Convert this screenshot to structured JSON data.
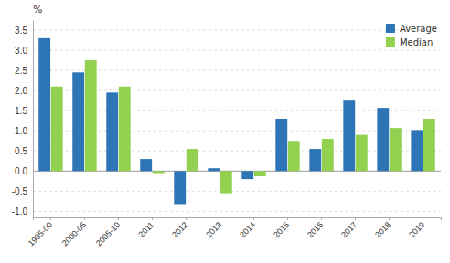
{
  "chart_data": {
    "type": "bar",
    "categories": [
      "1995-00",
      "2000-05",
      "2005-10",
      "2011",
      "2012",
      "2013",
      "2014",
      "2015",
      "2016",
      "2017",
      "2018",
      "2019"
    ],
    "series": [
      {
        "name": "Average",
        "color": "#2E75B6",
        "values": [
          3.3,
          2.45,
          1.95,
          0.3,
          -0.82,
          0.07,
          -0.2,
          1.3,
          0.55,
          1.75,
          1.57,
          1.02
        ]
      },
      {
        "name": "Median",
        "color": "#92D050",
        "values": [
          2.1,
          2.75,
          2.1,
          -0.05,
          0.55,
          -0.55,
          -0.13,
          0.75,
          0.8,
          0.9,
          1.07,
          1.3
        ]
      }
    ],
    "ylabel": "%",
    "ylim": [
      -1.15,
      3.75
    ],
    "yticks": [
      {
        "value": -1.0,
        "label": "-1.0"
      },
      -0.5,
      {
        "value": 0.0,
        "label": "0.0"
      },
      0.5,
      {
        "value": 1.0,
        "label": "1.0"
      },
      1.5,
      {
        "value": 2.0,
        "label": "2.0"
      },
      2.5,
      {
        "value": 3.0,
        "label": "3.0"
      },
      3.5
    ],
    "grid": true,
    "legend": "upper right"
  }
}
